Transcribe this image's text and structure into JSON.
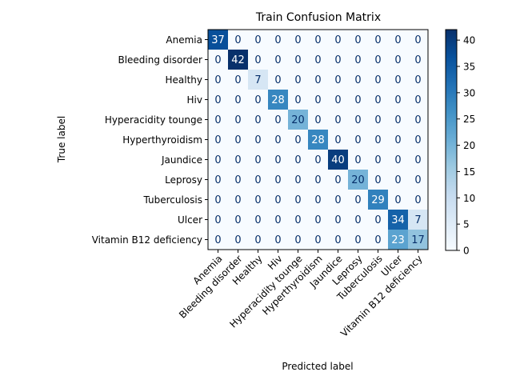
{
  "chart_data": {
    "type": "heatmap",
    "title": "Train Confusion Matrix",
    "xlabel": "Predicted label",
    "ylabel": "True label",
    "classes": [
      "Anemia",
      "Bleeding disorder",
      "Healthy",
      "Hiv",
      "Hyperacidity tounge",
      "Hyperthyroidism",
      "Jaundice",
      "Leprosy",
      "Tuberculosis",
      "Ulcer",
      "Vitamin B12 deficiency"
    ],
    "matrix": [
      [
        37,
        0,
        0,
        0,
        0,
        0,
        0,
        0,
        0,
        0,
        0
      ],
      [
        0,
        42,
        0,
        0,
        0,
        0,
        0,
        0,
        0,
        0,
        0
      ],
      [
        0,
        0,
        7,
        0,
        0,
        0,
        0,
        0,
        0,
        0,
        0
      ],
      [
        0,
        0,
        0,
        28,
        0,
        0,
        0,
        0,
        0,
        0,
        0
      ],
      [
        0,
        0,
        0,
        0,
        20,
        0,
        0,
        0,
        0,
        0,
        0
      ],
      [
        0,
        0,
        0,
        0,
        0,
        28,
        0,
        0,
        0,
        0,
        0
      ],
      [
        0,
        0,
        0,
        0,
        0,
        0,
        40,
        0,
        0,
        0,
        0
      ],
      [
        0,
        0,
        0,
        0,
        0,
        0,
        0,
        20,
        0,
        0,
        0
      ],
      [
        0,
        0,
        0,
        0,
        0,
        0,
        0,
        0,
        29,
        0,
        0
      ],
      [
        0,
        0,
        0,
        0,
        0,
        0,
        0,
        0,
        0,
        34,
        7
      ],
      [
        0,
        0,
        0,
        0,
        0,
        0,
        0,
        0,
        0,
        23,
        17
      ]
    ],
    "colormap": "Blues",
    "vmin": 0,
    "vmax": 42,
    "colorbar_ticks": [
      0,
      5,
      10,
      15,
      20,
      25,
      30,
      35,
      40
    ],
    "colors": {
      "low": "#f7fbff",
      "high": "#08306b"
    }
  }
}
